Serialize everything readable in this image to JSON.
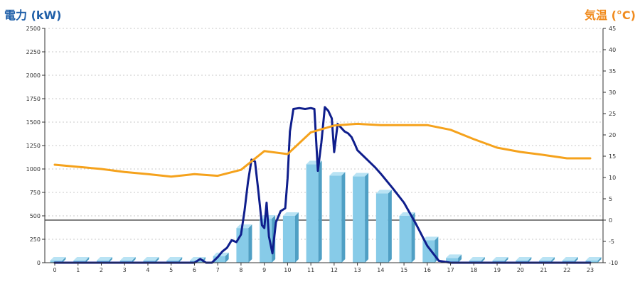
{
  "chart_data": {
    "type": "bar",
    "left_axis_title": "電力 (kW)",
    "right_axis_title": "気温 (°C)",
    "categories": [
      "0",
      "1",
      "2",
      "3",
      "4",
      "5",
      "6",
      "7",
      "8",
      "9",
      "10",
      "11",
      "12",
      "13",
      "14",
      "15",
      "16",
      "17",
      "18",
      "19",
      "20",
      "21",
      "22",
      "23"
    ],
    "y_left": {
      "min": 0,
      "max": 2500,
      "ticks": [
        0,
        250,
        500,
        750,
        1000,
        1250,
        1500,
        1750,
        2000,
        2250,
        2500
      ]
    },
    "y_right": {
      "min": -10,
      "max": 45,
      "ticks": [
        -10,
        -5,
        0,
        5,
        10,
        15,
        20,
        25,
        30,
        35,
        40,
        45
      ]
    },
    "grid": "horizontal-dotted",
    "series": [
      {
        "kind": "bar",
        "axis": "left",
        "values": [
          0,
          0,
          0,
          0,
          0,
          0,
          0,
          70,
          370,
          470,
          500,
          1050,
          930,
          920,
          740,
          500,
          240,
          50,
          0,
          0,
          0,
          0,
          0,
          0
        ],
        "color": "#87cbe8"
      },
      {
        "kind": "line",
        "axis": "left",
        "color": "#0f1e8c",
        "x": [
          0,
          1,
          2,
          3,
          4,
          5,
          6,
          6.25,
          6.5,
          6.75,
          7,
          7.2,
          7.4,
          7.6,
          7.8,
          8,
          8.15,
          8.3,
          8.45,
          8.6,
          8.75,
          8.9,
          9,
          9.1,
          9.2,
          9.35,
          9.5,
          9.7,
          9.9,
          10,
          10.1,
          10.25,
          10.5,
          10.75,
          11,
          11.15,
          11.3,
          11.45,
          11.6,
          11.75,
          11.9,
          12,
          12.15,
          12.3,
          12.45,
          12.6,
          12.75,
          12.9,
          13,
          13.25,
          13.5,
          13.75,
          14,
          14.5,
          15,
          15.5,
          16,
          16.5,
          17,
          18,
          19,
          20,
          21,
          22,
          23
        ],
        "values": [
          0,
          0,
          0,
          0,
          0,
          0,
          0,
          40,
          0,
          0,
          60,
          120,
          160,
          240,
          220,
          300,
          550,
          860,
          1100,
          1080,
          750,
          400,
          370,
          640,
          280,
          100,
          430,
          550,
          580,
          900,
          1400,
          1640,
          1650,
          1640,
          1650,
          1640,
          980,
          1280,
          1660,
          1620,
          1540,
          1180,
          1480,
          1440,
          1400,
          1380,
          1340,
          1260,
          1200,
          1140,
          1080,
          1020,
          950,
          800,
          640,
          420,
          180,
          20,
          0,
          0,
          0,
          0,
          0,
          0,
          0
        ]
      },
      {
        "kind": "line",
        "axis": "right",
        "color": "#f5a21c",
        "x": [
          0,
          1,
          2,
          3,
          4,
          5,
          6,
          7,
          8,
          9,
          10,
          11,
          12,
          13,
          14,
          15,
          16,
          17,
          18,
          19,
          20,
          21,
          22,
          23
        ],
        "values": [
          13,
          12.5,
          12,
          11.3,
          10.8,
          10.2,
          10.8,
          10.4,
          11.8,
          16.2,
          15.5,
          20.6,
          22.2,
          22.6,
          22.3,
          22.3,
          22.3,
          21.2,
          19,
          17,
          16,
          15.3,
          14.5,
          14.5
        ]
      }
    ]
  }
}
